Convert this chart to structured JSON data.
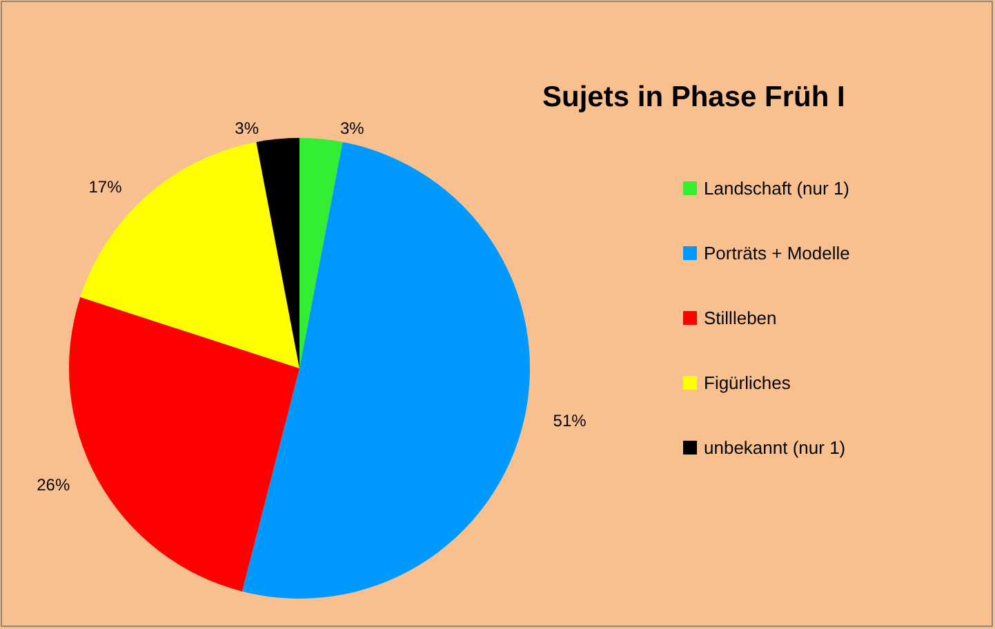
{
  "chart_data": {
    "type": "pie",
    "title": "Sujets in Phase Früh I",
    "categories": [
      "Landschaft (nur 1)",
      "Porträts + Modelle",
      "Stillleben",
      "Figürliches",
      "unbekannt (nur 1)"
    ],
    "values": [
      3,
      51,
      26,
      17,
      3
    ],
    "colors": [
      "#33ee33",
      "#0099ff",
      "#ff0000",
      "#ffff00",
      "#000000"
    ],
    "value_labels": [
      "3%",
      "51%",
      "26%",
      "17%",
      "3%"
    ],
    "legend": "right"
  }
}
